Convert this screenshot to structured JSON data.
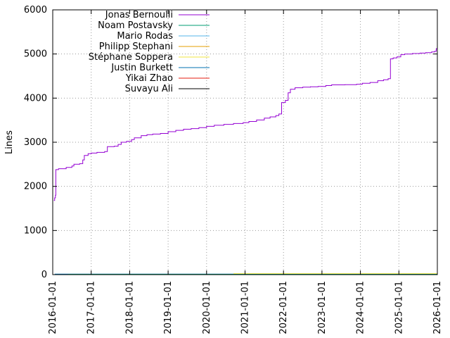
{
  "chart_data": {
    "type": "line",
    "title": "",
    "xlabel": "",
    "ylabel": "Lines",
    "xlim": [
      2016,
      2026
    ],
    "ylim": [
      0,
      6000
    ],
    "x_ticks": [
      2016,
      2017,
      2018,
      2019,
      2020,
      2021,
      2022,
      2023,
      2024,
      2025,
      2026
    ],
    "x_tick_labels": [
      "2016-01-01",
      "2017-01-01",
      "2018-01-01",
      "2019-01-01",
      "2020-01-01",
      "2021-01-01",
      "2022-01-01",
      "2023-01-01",
      "2024-01-01",
      "2025-01-01",
      "2026-01-01"
    ],
    "y_ticks": [
      0,
      1000,
      2000,
      3000,
      4000,
      5000,
      6000
    ],
    "y_tick_labels": [
      "0",
      "1000",
      "2000",
      "3000",
      "4000",
      "5000",
      "6000"
    ],
    "grid": "dotted",
    "legend_position": "top-inside-left",
    "border": "box",
    "grid_color": "#9a9a9a",
    "axis_color": "#000000",
    "series": [
      {
        "name": "Jonas Bernoulli",
        "color": "#9400d3",
        "points": [
          [
            2016.03,
            1680
          ],
          [
            2016.05,
            1740
          ],
          [
            2016.07,
            1800
          ],
          [
            2016.08,
            2380
          ],
          [
            2016.15,
            2400
          ],
          [
            2016.35,
            2430
          ],
          [
            2016.5,
            2460
          ],
          [
            2016.55,
            2500
          ],
          [
            2016.7,
            2515
          ],
          [
            2016.78,
            2600
          ],
          [
            2016.82,
            2700
          ],
          [
            2016.92,
            2740
          ],
          [
            2017.0,
            2755
          ],
          [
            2017.15,
            2770
          ],
          [
            2017.35,
            2790
          ],
          [
            2017.42,
            2900
          ],
          [
            2017.6,
            2910
          ],
          [
            2017.7,
            2950
          ],
          [
            2017.78,
            3000
          ],
          [
            2017.92,
            3020
          ],
          [
            2018.05,
            3060
          ],
          [
            2018.12,
            3100
          ],
          [
            2018.3,
            3150
          ],
          [
            2018.45,
            3170
          ],
          [
            2018.6,
            3185
          ],
          [
            2018.8,
            3200
          ],
          [
            2019.0,
            3240
          ],
          [
            2019.2,
            3270
          ],
          [
            2019.4,
            3295
          ],
          [
            2019.6,
            3310
          ],
          [
            2019.8,
            3330
          ],
          [
            2020.0,
            3360
          ],
          [
            2020.2,
            3385
          ],
          [
            2020.45,
            3405
          ],
          [
            2020.7,
            3425
          ],
          [
            2020.95,
            3445
          ],
          [
            2021.1,
            3470
          ],
          [
            2021.3,
            3505
          ],
          [
            2021.5,
            3545
          ],
          [
            2021.65,
            3575
          ],
          [
            2021.8,
            3605
          ],
          [
            2021.88,
            3640
          ],
          [
            2021.95,
            3900
          ],
          [
            2022.05,
            3950
          ],
          [
            2022.12,
            4120
          ],
          [
            2022.18,
            4200
          ],
          [
            2022.3,
            4235
          ],
          [
            2022.5,
            4250
          ],
          [
            2022.7,
            4258
          ],
          [
            2022.9,
            4265
          ],
          [
            2023.1,
            4285
          ],
          [
            2023.25,
            4300
          ],
          [
            2023.6,
            4305
          ],
          [
            2023.9,
            4315
          ],
          [
            2024.05,
            4335
          ],
          [
            2024.25,
            4355
          ],
          [
            2024.45,
            4395
          ],
          [
            2024.6,
            4415
          ],
          [
            2024.72,
            4440
          ],
          [
            2024.78,
            4890
          ],
          [
            2024.85,
            4910
          ],
          [
            2024.95,
            4935
          ],
          [
            2025.05,
            4985
          ],
          [
            2025.15,
            5000
          ],
          [
            2025.35,
            5010
          ],
          [
            2025.55,
            5020
          ],
          [
            2025.7,
            5030
          ],
          [
            2025.85,
            5045
          ],
          [
            2025.93,
            5060
          ],
          [
            2025.97,
            5120
          ],
          [
            2026.0,
            5080
          ]
        ]
      },
      {
        "name": "Noam Postavsky",
        "color": "#009e73",
        "points": [
          [
            2016.4,
            8
          ],
          [
            2026,
            10
          ]
        ]
      },
      {
        "name": "Mario Rodas",
        "color": "#56b4e9",
        "points": [
          [
            2018.6,
            4
          ],
          [
            2026,
            6
          ]
        ]
      },
      {
        "name": "Philipp Stephani",
        "color": "#e69f00",
        "points": [
          [
            2016.9,
            6
          ],
          [
            2026,
            8
          ]
        ]
      },
      {
        "name": "Stéphane Soppera",
        "color": "#f0e442",
        "points": [
          [
            2020.7,
            22
          ],
          [
            2026,
            30
          ]
        ]
      },
      {
        "name": "Justin Burkett",
        "color": "#0072b2",
        "points": [
          [
            2016.05,
            12
          ],
          [
            2026,
            12
          ]
        ]
      },
      {
        "name": "Yikai Zhao",
        "color": "#e51e10",
        "points": [
          [
            2016.3,
            5
          ],
          [
            2026,
            5
          ]
        ]
      },
      {
        "name": "Suvayu Ali",
        "color": "#000000",
        "points": [
          [
            2016.2,
            3
          ],
          [
            2026,
            3
          ]
        ]
      }
    ]
  }
}
